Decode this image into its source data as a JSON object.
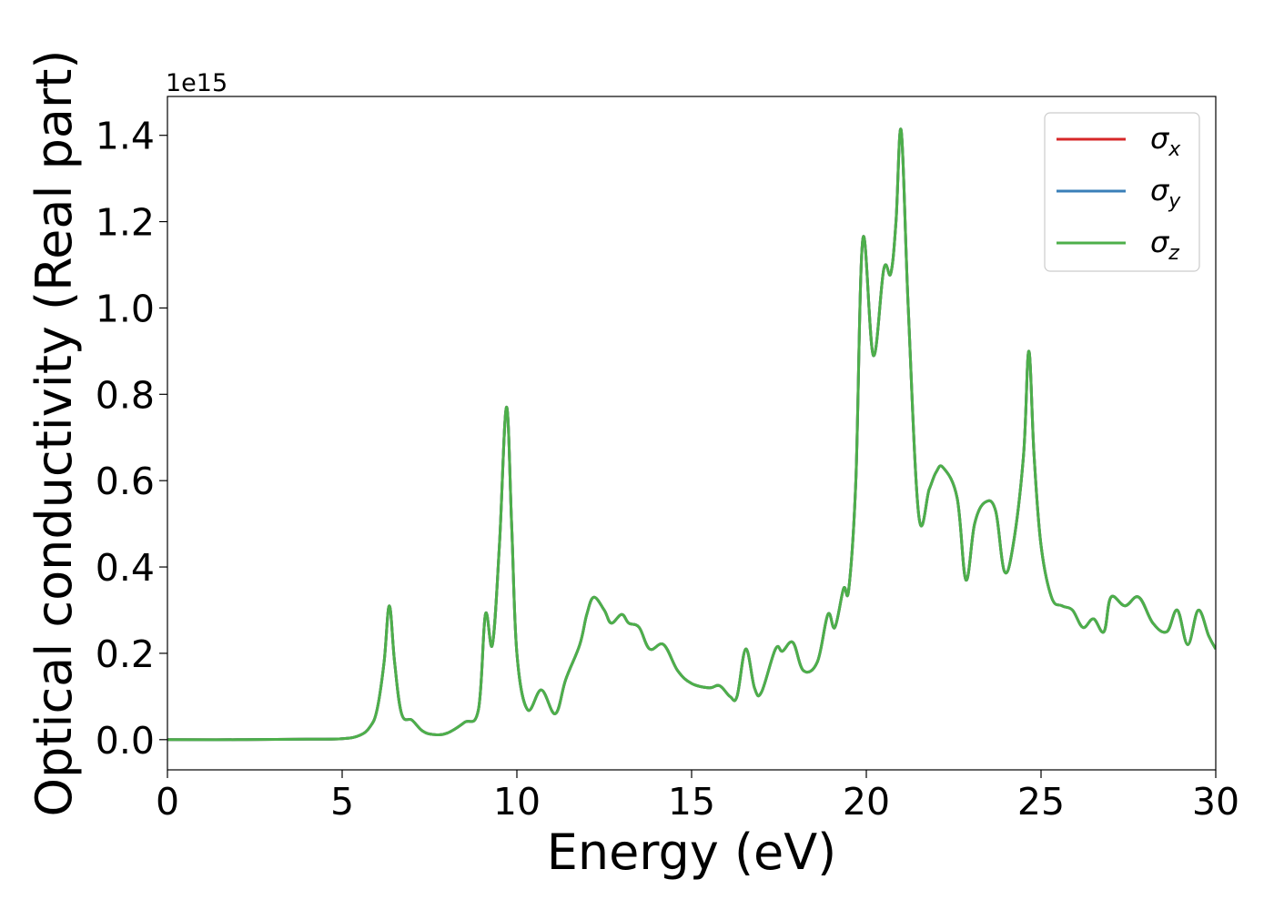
{
  "chart_data": {
    "type": "line",
    "title": "",
    "xlabel": "Energy (eV)",
    "ylabel": "Optical conductivity (Real part)",
    "y_offset_label": "1e15",
    "xlim": [
      0,
      30
    ],
    "ylim": [
      -0.07,
      1.49
    ],
    "xticks": [
      0,
      5,
      10,
      15,
      20,
      25,
      30
    ],
    "xtick_labels": [
      "0",
      "5",
      "10",
      "15",
      "20",
      "25",
      "30"
    ],
    "yticks": [
      0.0,
      0.2,
      0.4,
      0.6,
      0.8,
      1.0,
      1.2,
      1.4
    ],
    "ytick_labels": [
      "0.0",
      "0.2",
      "0.4",
      "0.6",
      "0.8",
      "1.0",
      "1.2",
      "1.4"
    ],
    "grid": false,
    "legend_position": "top-right",
    "series": [
      {
        "name": "σx",
        "symbol": "σ",
        "subscript": "x",
        "color": "#d62728"
      },
      {
        "name": "σy",
        "symbol": "σ",
        "subscript": "y",
        "color": "#3a7fb8"
      },
      {
        "name": "σz",
        "symbol": "σ",
        "subscript": "z",
        "color": "#4daf4a"
      }
    ],
    "x": [
      0,
      2,
      4,
      5,
      5.5,
      5.8,
      6.0,
      6.2,
      6.35,
      6.5,
      6.7,
      7.0,
      7.3,
      7.6,
      8.0,
      8.5,
      8.9,
      9.1,
      9.3,
      9.5,
      9.7,
      9.85,
      10.0,
      10.3,
      10.7,
      11.1,
      11.4,
      11.8,
      12.0,
      12.2,
      12.5,
      12.7,
      13.0,
      13.2,
      13.5,
      13.8,
      14.2,
      14.6,
      15.0,
      15.5,
      15.8,
      16.1,
      16.3,
      16.55,
      16.8,
      17.0,
      17.4,
      17.6,
      17.9,
      18.2,
      18.6,
      18.9,
      19.1,
      19.35,
      19.5,
      19.7,
      19.9,
      20.2,
      20.5,
      20.7,
      20.85,
      21.0,
      21.2,
      21.5,
      21.8,
      22.0,
      22.2,
      22.6,
      22.85,
      23.1,
      23.4,
      23.7,
      23.95,
      24.2,
      24.5,
      24.65,
      24.8,
      25.0,
      25.3,
      25.6,
      25.9,
      26.2,
      26.5,
      26.8,
      27.0,
      27.4,
      27.8,
      28.2,
      28.6,
      28.9,
      29.2,
      29.5,
      29.8,
      30.0
    ],
    "y": [
      0.0,
      0.0,
      0.001,
      0.002,
      0.01,
      0.03,
      0.07,
      0.18,
      0.31,
      0.18,
      0.06,
      0.045,
      0.02,
      0.012,
      0.015,
      0.04,
      0.07,
      0.29,
      0.22,
      0.45,
      0.77,
      0.5,
      0.2,
      0.07,
      0.115,
      0.06,
      0.14,
      0.22,
      0.29,
      0.33,
      0.3,
      0.27,
      0.29,
      0.27,
      0.26,
      0.21,
      0.22,
      0.16,
      0.13,
      0.12,
      0.125,
      0.1,
      0.1,
      0.21,
      0.12,
      0.11,
      0.21,
      0.205,
      0.225,
      0.16,
      0.18,
      0.29,
      0.26,
      0.35,
      0.35,
      0.6,
      1.16,
      0.89,
      1.09,
      1.08,
      1.2,
      1.41,
      1.0,
      0.52,
      0.58,
      0.62,
      0.63,
      0.56,
      0.37,
      0.5,
      0.55,
      0.53,
      0.39,
      0.45,
      0.66,
      0.9,
      0.66,
      0.45,
      0.33,
      0.31,
      0.3,
      0.26,
      0.28,
      0.25,
      0.33,
      0.31,
      0.33,
      0.27,
      0.25,
      0.3,
      0.22,
      0.3,
      0.24,
      0.21
    ]
  }
}
